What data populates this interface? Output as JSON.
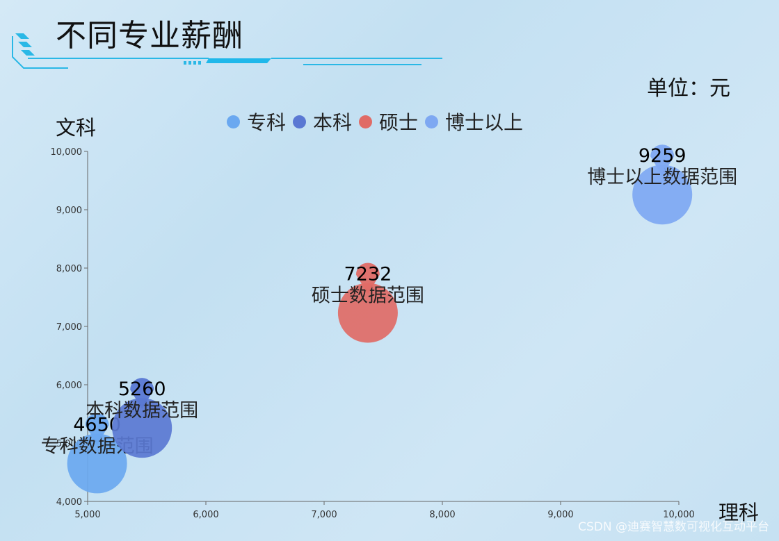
{
  "header": {
    "title": "不同专业薪酬",
    "unit": "单位：元"
  },
  "footer": {
    "watermark": "CSDN @迪赛智慧数可视化互动平台"
  },
  "chart_data": {
    "type": "scatter",
    "xlabel": "理科",
    "ylabel": "文科",
    "xlim": [
      5000,
      10000
    ],
    "ylim": [
      4000,
      10000
    ],
    "x_ticks": [
      "5,000",
      "6,000",
      "7,000",
      "8,000",
      "9,000",
      "10,000"
    ],
    "y_ticks": [
      "4,000",
      "5,000",
      "6,000",
      "7,000",
      "8,000",
      "9,000",
      "10,000"
    ],
    "legend_position": "top",
    "series": [
      {
        "name": "专科",
        "color": "#6aa8f0",
        "x": 5080,
        "y": 4650,
        "label": "专科数据范围",
        "value": "4650"
      },
      {
        "name": "本科",
        "color": "#5a78d3",
        "x": 5460,
        "y": 5260,
        "label": "本科数据范围",
        "value": "5260"
      },
      {
        "name": "硕士",
        "color": "#e06b66",
        "x": 7370,
        "y": 7232,
        "label": "硕士数据范围",
        "value": "7232"
      },
      {
        "name": "博士以上",
        "color": "#7ea8f2",
        "x": 9860,
        "y": 9259,
        "label": "博士以上数据范围",
        "value": "9259"
      }
    ]
  }
}
